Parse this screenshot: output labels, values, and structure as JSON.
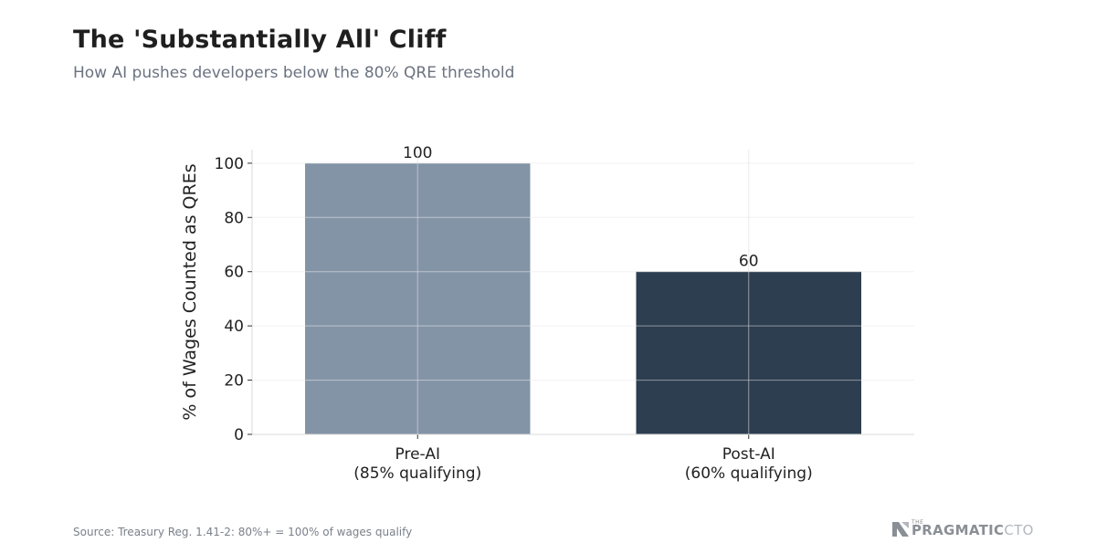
{
  "header": {
    "title": "The 'Substantially All' Cliff",
    "subtitle": "How AI pushes developers below the 80% QRE threshold"
  },
  "footer": {
    "source": "Source: Treasury Reg. 1.41-2: 80%+ = 100% of wages qualify"
  },
  "logo": {
    "the": "THE",
    "pragmatic": "PRAGMATIC",
    "cto": "CTO",
    "icon": "pragmatic-cto-logo-icon"
  },
  "chart_data": {
    "type": "bar",
    "categories": [
      [
        "Pre-AI",
        "(85% qualifying)"
      ],
      [
        "Post-AI",
        "(60% qualifying)"
      ]
    ],
    "values": [
      100,
      60
    ],
    "data_labels": [
      "100",
      "60"
    ],
    "colors": [
      "#8494a7",
      "#2d3e50"
    ],
    "ylabel": "% of Wages Counted as QREs",
    "xlabel": "",
    "ylim": [
      0,
      105
    ],
    "yticks": [
      0,
      20,
      40,
      60,
      80,
      100
    ],
    "grid": true,
    "legend": "none"
  }
}
